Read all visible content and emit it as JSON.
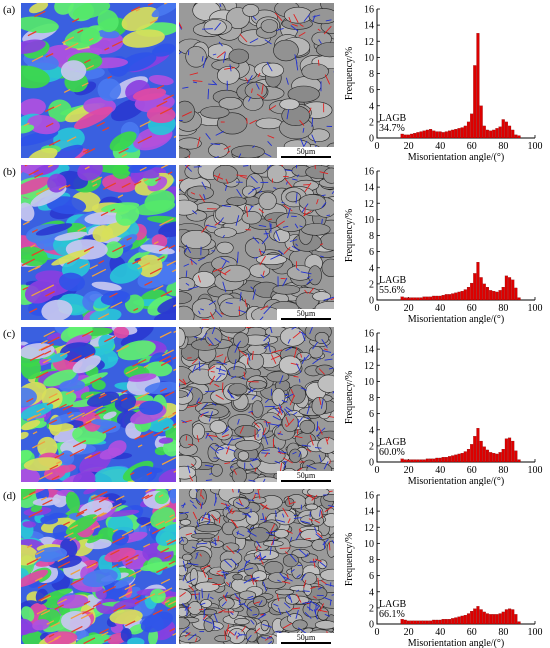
{
  "scale_bar_label": "50μm",
  "colors": {
    "bar": "#dd0000",
    "lagb_line": "#2030d0",
    "twin_line": "#e02020",
    "grain_line": "#222222"
  },
  "panels": [
    {
      "label": "(a)",
      "lagb_label": "LAGB",
      "lagb_value": "34.7%"
    },
    {
      "label": "(b)",
      "lagb_label": "LAGB",
      "lagb_value": "55.6%"
    },
    {
      "label": "(c)",
      "lagb_label": "LAGB",
      "lagb_value": "60.0%"
    },
    {
      "label": "(d)",
      "lagb_label": "LAGB",
      "lagb_value": "66.1%"
    }
  ],
  "chart_data": [
    {
      "type": "bar",
      "xlabel": "Misorientation angle/(°)",
      "ylabel": "Frequency/%",
      "xlim": [
        0,
        100
      ],
      "ylim": [
        0,
        16
      ],
      "xticks": [
        0,
        20,
        40,
        60,
        80,
        100
      ],
      "yticks": [
        0,
        2,
        4,
        6,
        8,
        10,
        12,
        14,
        16
      ],
      "x": [
        16,
        18,
        20,
        22,
        24,
        26,
        28,
        30,
        32,
        34,
        36,
        38,
        40,
        42,
        44,
        46,
        48,
        50,
        52,
        54,
        56,
        58,
        60,
        62,
        64,
        66,
        68,
        70,
        72,
        74,
        76,
        78,
        80,
        82,
        84,
        86,
        88,
        90
      ],
      "values": [
        0.5,
        0.4,
        0.4,
        0.5,
        0.6,
        0.7,
        0.8,
        0.9,
        1.0,
        1.1,
        0.9,
        0.8,
        0.8,
        0.7,
        0.8,
        0.9,
        1.0,
        1.1,
        1.2,
        1.3,
        1.5,
        2.0,
        3.0,
        9.0,
        13.0,
        4.0,
        1.5,
        1.0,
        0.9,
        1.0,
        1.2,
        1.4,
        2.3,
        2.0,
        1.5,
        1.0,
        0.4,
        0.3
      ]
    },
    {
      "type": "bar",
      "xlabel": "Misorientation angle/(°)",
      "ylabel": "Frequency/%",
      "xlim": [
        0,
        100
      ],
      "ylim": [
        0,
        16
      ],
      "xticks": [
        0,
        20,
        40,
        60,
        80,
        100
      ],
      "yticks": [
        0,
        2,
        4,
        6,
        8,
        10,
        12,
        14,
        16
      ],
      "x": [
        16,
        18,
        20,
        22,
        24,
        26,
        28,
        30,
        32,
        34,
        36,
        38,
        40,
        42,
        44,
        46,
        48,
        50,
        52,
        54,
        56,
        58,
        60,
        62,
        64,
        66,
        68,
        70,
        72,
        74,
        76,
        78,
        80,
        82,
        84,
        86,
        88,
        90
      ],
      "values": [
        0.4,
        0.3,
        0.3,
        0.3,
        0.3,
        0.3,
        0.3,
        0.4,
        0.4,
        0.4,
        0.5,
        0.5,
        0.5,
        0.6,
        0.7,
        0.7,
        0.8,
        0.9,
        1.0,
        1.1,
        1.3,
        1.6,
        2.1,
        3.3,
        4.7,
        2.8,
        2.0,
        1.6,
        1.2,
        1.1,
        1.0,
        1.2,
        1.6,
        3.0,
        2.8,
        2.5,
        1.5,
        0.3
      ]
    },
    {
      "type": "bar",
      "xlabel": "Misorientation angle/(°)",
      "ylabel": "Frequency/%",
      "xlim": [
        0,
        100
      ],
      "ylim": [
        0,
        16
      ],
      "xticks": [
        0,
        20,
        40,
        60,
        80,
        100
      ],
      "yticks": [
        0,
        2,
        4,
        6,
        8,
        10,
        12,
        14,
        16
      ],
      "x": [
        16,
        18,
        20,
        22,
        24,
        26,
        28,
        30,
        32,
        34,
        36,
        38,
        40,
        42,
        44,
        46,
        48,
        50,
        52,
        54,
        56,
        58,
        60,
        62,
        64,
        66,
        68,
        70,
        72,
        74,
        76,
        78,
        80,
        82,
        84,
        86,
        88,
        90
      ],
      "values": [
        0.4,
        0.3,
        0.3,
        0.3,
        0.3,
        0.3,
        0.3,
        0.3,
        0.4,
        0.4,
        0.4,
        0.5,
        0.5,
        0.6,
        0.6,
        0.7,
        0.8,
        0.9,
        1.0,
        1.1,
        1.3,
        1.6,
        2.2,
        3.2,
        4.2,
        2.6,
        1.9,
        1.5,
        1.2,
        1.1,
        1.0,
        1.2,
        1.6,
        2.9,
        3.0,
        2.6,
        1.4,
        0.3
      ]
    },
    {
      "type": "bar",
      "xlabel": "Misorientation angle/(°)",
      "ylabel": "Frequency/%",
      "xlim": [
        0,
        100
      ],
      "ylim": [
        0,
        16
      ],
      "xticks": [
        0,
        20,
        40,
        60,
        80,
        100
      ],
      "yticks": [
        0,
        2,
        4,
        6,
        8,
        10,
        12,
        14,
        16
      ],
      "x": [
        16,
        18,
        20,
        22,
        24,
        26,
        28,
        30,
        32,
        34,
        36,
        38,
        40,
        42,
        44,
        46,
        48,
        50,
        52,
        54,
        56,
        58,
        60,
        62,
        64,
        66,
        68,
        70,
        72,
        74,
        76,
        78,
        80,
        82,
        84,
        86,
        88,
        90
      ],
      "values": [
        0.6,
        0.5,
        0.4,
        0.4,
        0.4,
        0.4,
        0.4,
        0.4,
        0.4,
        0.4,
        0.5,
        0.5,
        0.5,
        0.6,
        0.6,
        0.6,
        0.7,
        0.8,
        0.9,
        1.0,
        1.1,
        1.3,
        1.6,
        1.9,
        2.2,
        1.8,
        1.5,
        1.3,
        1.2,
        1.2,
        1.2,
        1.3,
        1.5,
        1.8,
        1.9,
        1.8,
        1.2,
        0.3
      ]
    }
  ]
}
